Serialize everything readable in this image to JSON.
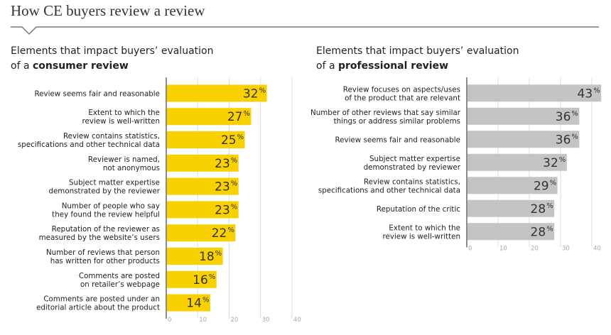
{
  "page": {
    "title": "How CE buyers review a review"
  },
  "chart_data": [
    {
      "type": "bar",
      "orientation": "horizontal",
      "title_line1": "Elements that impact buyers’ evaluation",
      "title_prefix": "of a",
      "title_bold": "consumer review",
      "categories": [
        [
          "Review seems fair and reasonable"
        ],
        [
          "Extent to which the",
          "review is well-written"
        ],
        [
          "Review contains statistics,",
          "specifications and other technical data"
        ],
        [
          "Reviewer is named,",
          "not anonymous"
        ],
        [
          "Subject matter expertise",
          "demonstrated by the reviewer"
        ],
        [
          "Number of people who say",
          "they found the review helpful"
        ],
        [
          "Reputation of the reviewer as",
          "measured by the website’s users"
        ],
        [
          "Number of reviews that person",
          "has written for other products"
        ],
        [
          "Comments are posted",
          "on retailer’s webpage"
        ],
        [
          "Comments are posted under an",
          "editorial article about the product"
        ]
      ],
      "values": [
        32,
        27,
        25,
        23,
        23,
        23,
        22,
        18,
        16,
        14
      ],
      "unit": "%",
      "xlim": [
        0,
        40
      ],
      "xticks": [
        0,
        10,
        20,
        30,
        40
      ],
      "bar_color": "#f9d100"
    },
    {
      "type": "bar",
      "orientation": "horizontal",
      "title_line1": "Elements that impact buyers’ evaluation",
      "title_prefix": "of a",
      "title_bold": "professional review",
      "categories": [
        [
          "Review focuses on aspects/uses",
          "of the product that are relevant"
        ],
        [
          "Number of other reviews that say similar",
          "things or address similar problems"
        ],
        [
          "Review seems fair and reasonable"
        ],
        [
          "Subject matter expertise",
          "demonstrated by reviewer"
        ],
        [
          "Review contains statistics,",
          "specifications and other technical data"
        ],
        [
          "Reputation of the critic"
        ],
        [
          "Extent to which the",
          "review is well-written"
        ]
      ],
      "values": [
        43,
        36,
        36,
        32,
        29,
        28,
        28
      ],
      "unit": "%",
      "xlim": [
        0,
        40
      ],
      "xticks": [
        0,
        10,
        20,
        30,
        40
      ],
      "bar_color": "#c4c4c4"
    }
  ]
}
